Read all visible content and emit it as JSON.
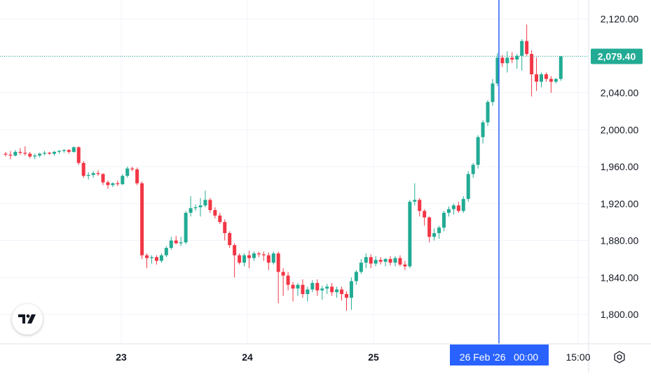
{
  "chart_data": {
    "type": "candlestick",
    "y_ticks": [
      "2,120.00",
      "2,040.00",
      "2,000.00",
      "1,960.00",
      "1,920.00",
      "1,880.00",
      "1,840.00",
      "1,800.00"
    ],
    "y_tick_values": [
      2120,
      2040,
      2000,
      1960,
      1920,
      1880,
      1840,
      1800
    ],
    "x_ticks": [
      "23",
      "24",
      "25",
      "15:00"
    ],
    "ylim": [
      1769,
      2150
    ],
    "last_price": 2079.4,
    "last_price_label": "2,079.40",
    "crosshair_label": "26 Feb '26   00:00",
    "grid": true,
    "colors": {
      "up": "#22ab94",
      "down": "#f23645",
      "crosshair": "#2962ff",
      "grid": "#f0f3fa",
      "axis_text": "#131722"
    },
    "ohlc": [
      [
        1974,
        1976,
        1971,
        1973
      ],
      [
        1973,
        1977,
        1968,
        1972
      ],
      [
        1972,
        1978,
        1971,
        1976
      ],
      [
        1976,
        1980,
        1973,
        1975
      ],
      [
        1975,
        1982,
        1972,
        1974
      ],
      [
        1974,
        1976,
        1969,
        1971
      ],
      [
        1971,
        1974,
        1968,
        1972
      ],
      [
        1972,
        1975,
        1970,
        1974
      ],
      [
        1974,
        1977,
        1972,
        1975
      ],
      [
        1975,
        1976,
        1973,
        1974
      ],
      [
        1974,
        1977,
        1972,
        1976
      ],
      [
        1976,
        1978,
        1974,
        1977
      ],
      [
        1977,
        1979,
        1975,
        1978
      ],
      [
        1978,
        1979,
        1974,
        1976
      ],
      [
        1976,
        1982,
        1975,
        1981
      ],
      [
        1981,
        1982,
        1962,
        1964
      ],
      [
        1964,
        1966,
        1948,
        1950
      ],
      [
        1950,
        1954,
        1946,
        1951
      ],
      [
        1951,
        1955,
        1948,
        1953
      ],
      [
        1953,
        1956,
        1950,
        1952
      ],
      [
        1952,
        1953,
        1940,
        1943
      ],
      [
        1943,
        1945,
        1936,
        1940
      ],
      [
        1940,
        1943,
        1938,
        1942
      ],
      [
        1942,
        1945,
        1939,
        1941
      ],
      [
        1941,
        1952,
        1940,
        1950
      ],
      [
        1950,
        1960,
        1948,
        1958
      ],
      [
        1958,
        1960,
        1955,
        1957
      ],
      [
        1957,
        1959,
        1940,
        1942
      ],
      [
        1942,
        1944,
        1860,
        1864
      ],
      [
        1864,
        1866,
        1850,
        1861
      ],
      [
        1861,
        1864,
        1855,
        1862
      ],
      [
        1862,
        1864,
        1854,
        1858
      ],
      [
        1858,
        1866,
        1856,
        1864
      ],
      [
        1864,
        1874,
        1862,
        1872
      ],
      [
        1872,
        1884,
        1870,
        1880
      ],
      [
        1880,
        1885,
        1876,
        1877
      ],
      [
        1877,
        1884,
        1874,
        1878
      ],
      [
        1878,
        1912,
        1876,
        1910
      ],
      [
        1910,
        1928,
        1906,
        1915
      ],
      [
        1915,
        1919,
        1912,
        1916
      ],
      [
        1916,
        1926,
        1906,
        1918
      ],
      [
        1918,
        1934,
        1916,
        1924
      ],
      [
        1924,
        1926,
        1910,
        1913
      ],
      [
        1913,
        1916,
        1904,
        1907
      ],
      [
        1907,
        1910,
        1898,
        1900
      ],
      [
        1900,
        1903,
        1880,
        1888
      ],
      [
        1888,
        1890,
        1872,
        1875
      ],
      [
        1875,
        1877,
        1840,
        1864
      ],
      [
        1864,
        1866,
        1854,
        1856
      ],
      [
        1856,
        1866,
        1852,
        1864
      ],
      [
        1864,
        1869,
        1850,
        1861
      ],
      [
        1861,
        1868,
        1858,
        1866
      ],
      [
        1866,
        1868,
        1862,
        1865
      ],
      [
        1865,
        1868,
        1858,
        1864
      ],
      [
        1864,
        1867,
        1848,
        1856
      ],
      [
        1856,
        1868,
        1854,
        1866
      ],
      [
        1866,
        1868,
        1812,
        1846
      ],
      [
        1846,
        1850,
        1820,
        1842
      ],
      [
        1842,
        1846,
        1826,
        1832
      ],
      [
        1832,
        1835,
        1814,
        1828
      ],
      [
        1828,
        1834,
        1820,
        1832
      ],
      [
        1832,
        1838,
        1818,
        1822
      ],
      [
        1822,
        1830,
        1814,
        1827
      ],
      [
        1827,
        1837,
        1824,
        1834
      ],
      [
        1834,
        1838,
        1820,
        1826
      ],
      [
        1826,
        1831,
        1816,
        1828
      ],
      [
        1828,
        1833,
        1822,
        1830
      ],
      [
        1830,
        1834,
        1820,
        1824
      ],
      [
        1824,
        1830,
        1818,
        1827
      ],
      [
        1827,
        1830,
        1815,
        1822
      ],
      [
        1822,
        1825,
        1804,
        1818
      ],
      [
        1818,
        1840,
        1805,
        1836
      ],
      [
        1836,
        1848,
        1832,
        1846
      ],
      [
        1846,
        1860,
        1844,
        1856
      ],
      [
        1856,
        1866,
        1850,
        1862
      ],
      [
        1862,
        1865,
        1850,
        1855
      ],
      [
        1855,
        1863,
        1852,
        1859
      ],
      [
        1859,
        1862,
        1854,
        1857
      ],
      [
        1857,
        1861,
        1852,
        1860
      ],
      [
        1860,
        1863,
        1853,
        1856
      ],
      [
        1856,
        1863,
        1852,
        1861
      ],
      [
        1861,
        1864,
        1852,
        1854
      ],
      [
        1854,
        1858,
        1848,
        1852
      ],
      [
        1852,
        1924,
        1850,
        1922
      ],
      [
        1922,
        1942,
        1918,
        1924
      ],
      [
        1924,
        1926,
        1906,
        1912
      ],
      [
        1912,
        1914,
        1896,
        1905
      ],
      [
        1905,
        1906,
        1878,
        1884
      ],
      [
        1884,
        1893,
        1880,
        1888
      ],
      [
        1888,
        1896,
        1882,
        1894
      ],
      [
        1894,
        1912,
        1890,
        1910
      ],
      [
        1910,
        1917,
        1906,
        1914
      ],
      [
        1914,
        1920,
        1908,
        1918
      ],
      [
        1918,
        1922,
        1910,
        1912
      ],
      [
        1912,
        1928,
        1910,
        1925
      ],
      [
        1925,
        1955,
        1922,
        1952
      ],
      [
        1952,
        1964,
        1948,
        1962
      ],
      [
        1962,
        1994,
        1958,
        1992
      ],
      [
        1992,
        2010,
        1985,
        2008
      ],
      [
        2008,
        2032,
        2004,
        2030
      ],
      [
        2030,
        2055,
        2026,
        2050
      ],
      [
        2050,
        2083,
        2047,
        2078
      ],
      [
        2078,
        2081,
        2068,
        2072
      ],
      [
        2072,
        2085,
        2062,
        2078
      ],
      [
        2078,
        2084,
        2072,
        2076
      ],
      [
        2076,
        2082,
        2066,
        2080
      ],
      [
        2080,
        2098,
        2064,
        2096
      ],
      [
        2096,
        2114,
        2080,
        2082
      ],
      [
        2082,
        2086,
        2036,
        2060
      ],
      [
        2060,
        2078,
        2042,
        2052
      ],
      [
        2052,
        2062,
        2046,
        2060
      ],
      [
        2060,
        2062,
        2052,
        2055
      ],
      [
        2055,
        2058,
        2040,
        2052
      ],
      [
        2052,
        2056,
        2050,
        2055
      ],
      [
        2055,
        2080,
        2053,
        2079.4
      ]
    ]
  },
  "toolbar": {
    "settings_icon": "gear-icon",
    "logo_icon": "tradingview-logo-icon"
  }
}
